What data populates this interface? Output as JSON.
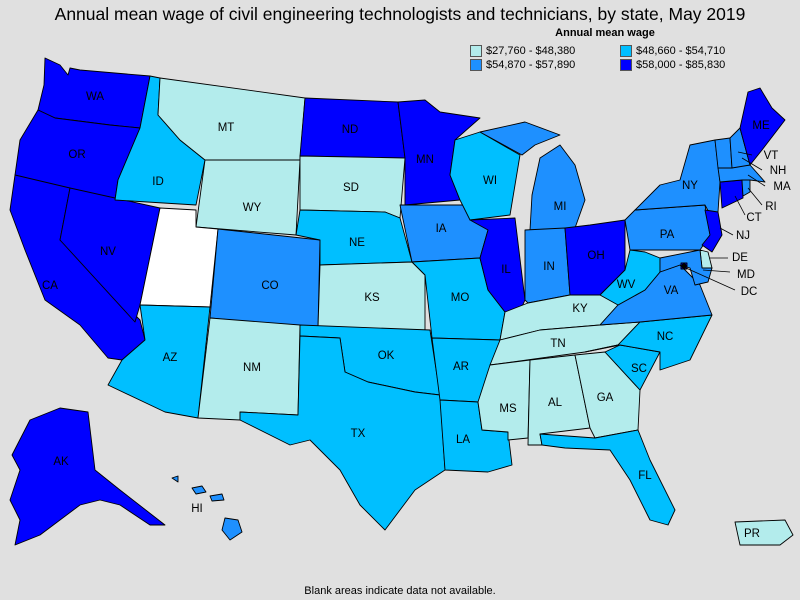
{
  "title": "Annual mean wage of civil engineering technologists and technicians, by state, May 2019",
  "footnote": "Blank areas indicate data not available.",
  "legend": {
    "title": "Annual mean wage",
    "items": [
      {
        "label": "$27,760 - $48,380",
        "color": "#b3ecec"
      },
      {
        "label": "$48,660 - $54,710",
        "color": "#00bfff"
      },
      {
        "label": "$54,870 - $57,890",
        "color": "#1e90ff"
      },
      {
        "label": "$58,000 - $85,830",
        "color": "#0000ff"
      }
    ]
  },
  "no_data_color": "#ffffff",
  "states": {
    "WA": {
      "label": "WA",
      "bin": 3
    },
    "OR": {
      "label": "OR",
      "bin": 3
    },
    "CA": {
      "label": "CA",
      "bin": 3
    },
    "NV": {
      "label": "NV",
      "bin": 3
    },
    "ID": {
      "label": "ID",
      "bin": 1
    },
    "MT": {
      "label": "MT",
      "bin": 0
    },
    "WY": {
      "label": "WY",
      "bin": 0
    },
    "UT": {
      "label": "",
      "bin": null
    },
    "AZ": {
      "label": "AZ",
      "bin": 1
    },
    "CO": {
      "label": "CO",
      "bin": 2
    },
    "NM": {
      "label": "NM",
      "bin": 0
    },
    "ND": {
      "label": "ND",
      "bin": 3
    },
    "SD": {
      "label": "SD",
      "bin": 0
    },
    "NE": {
      "label": "NE",
      "bin": 1
    },
    "KS": {
      "label": "KS",
      "bin": 0
    },
    "OK": {
      "label": "OK",
      "bin": 1
    },
    "TX": {
      "label": "TX",
      "bin": 1
    },
    "MN": {
      "label": "MN",
      "bin": 3
    },
    "IA": {
      "label": "IA",
      "bin": 2
    },
    "MO": {
      "label": "MO",
      "bin": 1
    },
    "AR": {
      "label": "AR",
      "bin": 1
    },
    "LA": {
      "label": "LA",
      "bin": 1
    },
    "WI": {
      "label": "WI",
      "bin": 1
    },
    "IL": {
      "label": "IL",
      "bin": 3
    },
    "MI": {
      "label": "MI",
      "bin": 2
    },
    "IN": {
      "label": "IN",
      "bin": 2
    },
    "OH": {
      "label": "OH",
      "bin": 3
    },
    "KY": {
      "label": "KY",
      "bin": 0
    },
    "TN": {
      "label": "TN",
      "bin": 0
    },
    "MS": {
      "label": "MS",
      "bin": 0
    },
    "AL": {
      "label": "AL",
      "bin": 0
    },
    "GA": {
      "label": "GA",
      "bin": 0
    },
    "FL": {
      "label": "FL",
      "bin": 1
    },
    "SC": {
      "label": "SC",
      "bin": 1
    },
    "NC": {
      "label": "NC",
      "bin": 1
    },
    "VA": {
      "label": "VA",
      "bin": 2
    },
    "WV": {
      "label": "WV",
      "bin": 1
    },
    "PA": {
      "label": "PA",
      "bin": 2
    },
    "NY": {
      "label": "NY",
      "bin": 2
    },
    "VT": {
      "label": "VT",
      "bin": 2
    },
    "NH": {
      "label": "NH",
      "bin": 2
    },
    "ME": {
      "label": "ME",
      "bin": 3
    },
    "MA": {
      "label": "MA",
      "bin": 2
    },
    "RI": {
      "label": "RI",
      "bin": 2
    },
    "CT": {
      "label": "CT",
      "bin": 3
    },
    "NJ": {
      "label": "NJ",
      "bin": 3
    },
    "DE": {
      "label": "DE",
      "bin": 0
    },
    "MD": {
      "label": "MD",
      "bin": 2
    },
    "DC": {
      "label": "DC",
      "bin": 3
    },
    "AK": {
      "label": "AK",
      "bin": 3
    },
    "HI": {
      "label": "HI",
      "bin": 2
    },
    "PR": {
      "label": "PR",
      "bin": 0
    }
  }
}
